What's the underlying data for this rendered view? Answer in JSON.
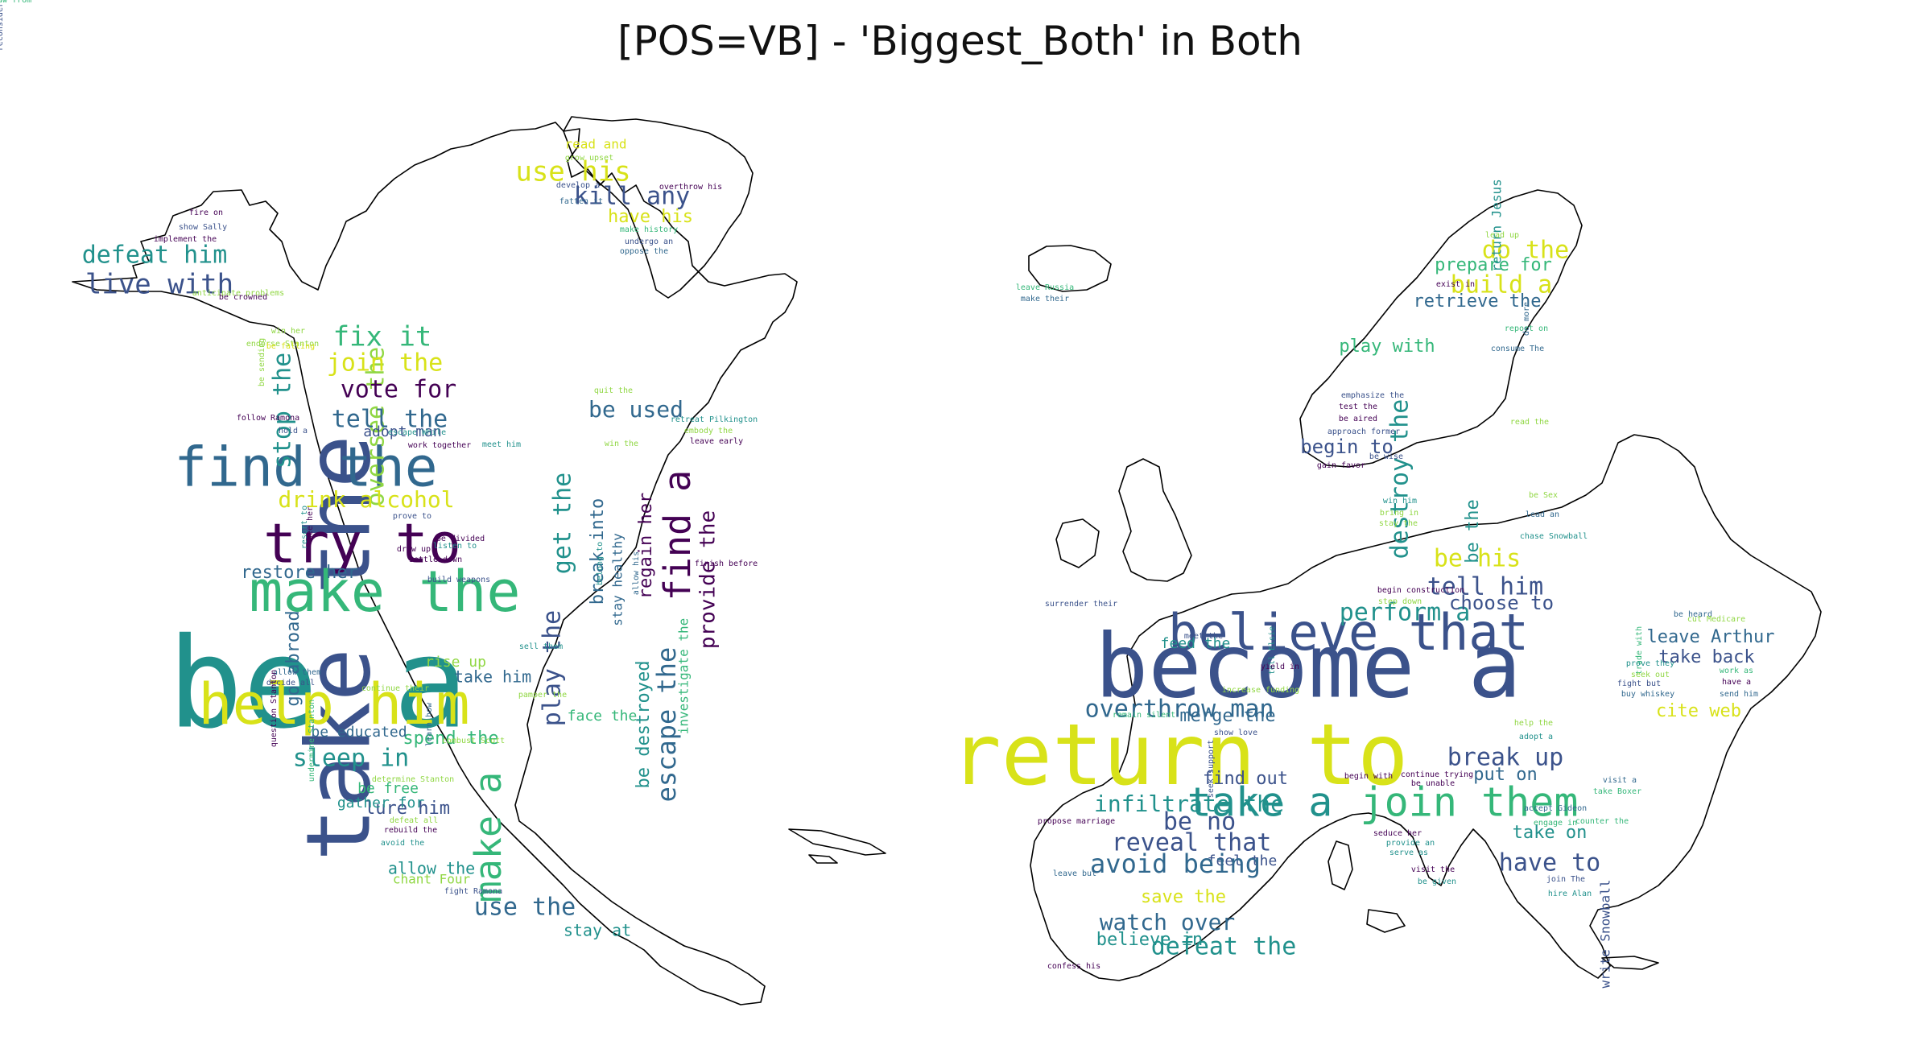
{
  "title": "[POS=VB] - 'Biggest_Both' in Both",
  "palette": {
    "dark": "#440154",
    "indigo": "#3b528b",
    "navy": "#31688e",
    "teal": "#21918c",
    "green": "#35b779",
    "lime": "#90d743",
    "yellow": "#d8e219",
    "outline": "#000000"
  },
  "north_america_words": [
    {
      "text": "be a",
      "size": 155,
      "color": "teal"
    },
    {
      "text": "take the",
      "size": 110,
      "color": "indigo",
      "vertical": true
    },
    {
      "text": "make the",
      "size": 70,
      "color": "green"
    },
    {
      "text": "help him",
      "size": 70,
      "color": "yellow"
    },
    {
      "text": "find the",
      "size": 68,
      "color": "navy"
    },
    {
      "text": "try to",
      "size": 68,
      "color": "dark"
    },
    {
      "text": "find a",
      "size": 45,
      "color": "dark",
      "vertical": true
    },
    {
      "text": "make a",
      "size": 45,
      "color": "green",
      "vertical": true
    },
    {
      "text": "escape the",
      "size": 32,
      "color": "navy",
      "vertical": true
    },
    {
      "text": "oversee the",
      "size": 30,
      "color": "lime",
      "vertical": true
    },
    {
      "text": "play the",
      "size": 30,
      "color": "indigo",
      "vertical": true
    },
    {
      "text": "get the",
      "size": 30,
      "color": "teal",
      "vertical": true
    },
    {
      "text": "stop the",
      "size": 30,
      "color": "teal",
      "vertical": true
    },
    {
      "text": "live with",
      "size": 34,
      "color": "indigo"
    },
    {
      "text": "defeat him",
      "size": 30,
      "color": "teal"
    },
    {
      "text": "fix it",
      "size": 34,
      "color": "green"
    },
    {
      "text": "join the",
      "size": 30,
      "color": "yellow"
    },
    {
      "text": "vote for",
      "size": 30,
      "color": "dark"
    },
    {
      "text": "tell the",
      "size": 30,
      "color": "navy"
    },
    {
      "text": "drink alcohol",
      "size": 28,
      "color": "yellow"
    },
    {
      "text": "use his",
      "size": 34,
      "color": "yellow"
    },
    {
      "text": "kill any",
      "size": 30,
      "color": "indigo"
    },
    {
      "text": "have his",
      "size": 22,
      "color": "yellow"
    },
    {
      "text": "be used",
      "size": 28,
      "color": "navy"
    },
    {
      "text": "sleep in",
      "size": 30,
      "color": "teal"
    },
    {
      "text": "spend the",
      "size": 22,
      "color": "green"
    },
    {
      "text": "use the",
      "size": 30,
      "color": "navy"
    },
    {
      "text": "provide the",
      "size": 26,
      "color": "dark",
      "vertical": true
    },
    {
      "text": "regain her",
      "size": 22,
      "color": "dark",
      "vertical": true
    },
    {
      "text": "break into",
      "size": 22,
      "color": "navy",
      "vertical": true
    },
    {
      "text": "be destroyed",
      "size": 22,
      "color": "teal",
      "vertical": true
    },
    {
      "text": "go abroad",
      "size": 22,
      "color": "navy",
      "vertical": true
    },
    {
      "text": "restore her",
      "size": 22,
      "color": "navy"
    },
    {
      "text": "lure him",
      "size": 22,
      "color": "indigo"
    },
    {
      "text": "allow the",
      "size": 20,
      "color": "teal"
    },
    {
      "text": "adopt man",
      "size": 18,
      "color": "indigo"
    },
    {
      "text": "rise up",
      "size": 18,
      "color": "lime"
    },
    {
      "text": "take him",
      "size": 20,
      "color": "navy"
    },
    {
      "text": "stay at",
      "size": 20,
      "color": "teal"
    },
    {
      "text": "face the",
      "size": 18,
      "color": "green"
    },
    {
      "text": "be educated",
      "size": 18,
      "color": "navy"
    },
    {
      "text": "be free",
      "size": 18,
      "color": "green"
    },
    {
      "text": "gather for",
      "size": 18,
      "color": "teal"
    },
    {
      "text": "chant Four",
      "size": 16,
      "color": "lime"
    },
    {
      "text": "read and",
      "size": 16,
      "color": "yellow"
    },
    {
      "text": "investigate the",
      "size": 16,
      "color": "green",
      "vertical": true
    },
    {
      "text": "stay healthy",
      "size": 16,
      "color": "navy",
      "vertical": true
    },
    {
      "text": "grow upset",
      "size": 10,
      "color": "lime"
    },
    {
      "text": "develop a",
      "size": 10,
      "color": "indigo"
    },
    {
      "text": "overthrow his",
      "size": 10,
      "color": "dark"
    },
    {
      "text": "fatten it",
      "size": 10,
      "color": "navy"
    },
    {
      "text": "make history",
      "size": 10,
      "color": "green"
    },
    {
      "text": "undergo an",
      "size": 10,
      "color": "indigo"
    },
    {
      "text": "oppose the",
      "size": 10,
      "color": "navy"
    },
    {
      "text": "fire on",
      "size": 10,
      "color": "dark"
    },
    {
      "text": "show Sally",
      "size": 10,
      "color": "indigo"
    },
    {
      "text": "implement the",
      "size": 10,
      "color": "dark"
    },
    {
      "text": "anticipate problems",
      "size": 10,
      "color": "lime"
    },
    {
      "text": "be crowned",
      "size": 10,
      "color": "dark"
    },
    {
      "text": "win her",
      "size": 10,
      "color": "lime"
    },
    {
      "text": "endorse Stanton",
      "size": 10,
      "color": "lime"
    },
    {
      "text": "be falling",
      "size": 10,
      "color": "yellow"
    },
    {
      "text": "quit the",
      "size": 10,
      "color": "lime"
    },
    {
      "text": "retreat Pilkington",
      "size": 10,
      "color": "teal"
    },
    {
      "text": "embody the",
      "size": 10,
      "color": "lime"
    },
    {
      "text": "leave early",
      "size": 10,
      "color": "dark"
    },
    {
      "text": "win the",
      "size": 10,
      "color": "lime"
    },
    {
      "text": "escape While",
      "size": 10,
      "color": "teal"
    },
    {
      "text": "follow Ramona",
      "size": 10,
      "color": "dark"
    },
    {
      "text": "hold a",
      "size": 10,
      "color": "indigo"
    },
    {
      "text": "work together",
      "size": 10,
      "color": "dark"
    },
    {
      "text": "meet him",
      "size": 10,
      "color": "teal"
    },
    {
      "text": "prove to",
      "size": 10,
      "color": "indigo"
    },
    {
      "text": "be divided",
      "size": 10,
      "color": "dark"
    },
    {
      "text": "listen to",
      "size": 10,
      "color": "teal"
    },
    {
      "text": "draw up",
      "size": 10,
      "color": "dark"
    },
    {
      "text": "settle down",
      "size": 10,
      "color": "dark"
    },
    {
      "text": "build weapons",
      "size": 10,
      "color": "indigo"
    },
    {
      "text": "allow them",
      "size": 10,
      "color": "navy"
    },
    {
      "text": "decide all",
      "size": 10,
      "color": "indigo"
    },
    {
      "text": "sell them",
      "size": 10,
      "color": "teal"
    },
    {
      "text": "pamper the",
      "size": 10,
      "color": "lime"
    },
    {
      "text": "continue their",
      "size": 10,
      "color": "lime"
    },
    {
      "text": "combust Scott",
      "size": 10,
      "color": "lime"
    },
    {
      "text": "determine Stanton",
      "size": 10,
      "color": "lime"
    },
    {
      "text": "defeat all",
      "size": 10,
      "color": "lime"
    },
    {
      "text": "rebuild the",
      "size": 10,
      "color": "dark"
    },
    {
      "text": "avoid the",
      "size": 10,
      "color": "teal"
    },
    {
      "text": "fight Ramona",
      "size": 10,
      "color": "indigo"
    },
    {
      "text": "finish before",
      "size": 10,
      "color": "dark"
    },
    {
      "text": "learn how",
      "size": 10,
      "color": "navy",
      "vertical": true
    },
    {
      "text": "question Stanton",
      "size": 10,
      "color": "dark",
      "vertical": true
    },
    {
      "text": "undermine Stanton",
      "size": 10,
      "color": "green",
      "vertical": true
    },
    {
      "text": "resort to",
      "size": 10,
      "color": "teal",
      "vertical": true
    },
    {
      "text": "see her",
      "size": 10,
      "color": "dark",
      "vertical": true
    },
    {
      "text": "be sending",
      "size": 10,
      "color": "lime",
      "vertical": true
    },
    {
      "text": "allow his",
      "size": 10,
      "color": "navy",
      "vertical": true
    },
    {
      "text": "belong to",
      "size": 10,
      "color": "teal",
      "vertical": true
    },
    {
      "text": "reconsider persuading",
      "size": 10,
      "color": "indigo",
      "vertical": true
    }
  ],
  "europe_words": [
    {
      "text": "become a",
      "size": 110,
      "color": "indigo"
    },
    {
      "text": "return to",
      "size": 105,
      "color": "yellow"
    },
    {
      "text": "believe that",
      "size": 62,
      "color": "indigo"
    },
    {
      "text": "take a",
      "size": 50,
      "color": "teal"
    },
    {
      "text": "join them",
      "size": 50,
      "color": "green"
    },
    {
      "text": "destroy the",
      "size": 30,
      "color": "teal",
      "vertical": true
    },
    {
      "text": "do the",
      "size": 30,
      "color": "yellow"
    },
    {
      "text": "build a",
      "size": 30,
      "color": "yellow"
    },
    {
      "text": "prepare for",
      "size": 22,
      "color": "green"
    },
    {
      "text": "retrieve the",
      "size": 22,
      "color": "navy"
    },
    {
      "text": "be the",
      "size": 22,
      "color": "teal",
      "vertical": true
    },
    {
      "text": "be his",
      "size": 30,
      "color": "yellow"
    },
    {
      "text": "tell him",
      "size": 30,
      "color": "indigo"
    },
    {
      "text": "perform a",
      "size": 30,
      "color": "teal"
    },
    {
      "text": "choose to",
      "size": 24,
      "color": "indigo"
    },
    {
      "text": "leave Arthur",
      "size": 22,
      "color": "navy"
    },
    {
      "text": "take back",
      "size": 22,
      "color": "indigo"
    },
    {
      "text": "cite web",
      "size": 22,
      "color": "yellow"
    },
    {
      "text": "merge the",
      "size": 22,
      "color": "navy"
    },
    {
      "text": "overthrow man",
      "size": 30,
      "color": "navy"
    },
    {
      "text": "break up",
      "size": 30,
      "color": "indigo"
    },
    {
      "text": "put on",
      "size": 22,
      "color": "navy"
    },
    {
      "text": "take on",
      "size": 22,
      "color": "teal"
    },
    {
      "text": "have to",
      "size": 30,
      "color": "indigo"
    },
    {
      "text": "be no",
      "size": 30,
      "color": "indigo"
    },
    {
      "text": "reveal that",
      "size": 30,
      "color": "indigo"
    },
    {
      "text": "infiltrate the",
      "size": 28,
      "color": "teal"
    },
    {
      "text": "find out",
      "size": 22,
      "color": "indigo"
    },
    {
      "text": "feel the",
      "size": 18,
      "color": "indigo"
    },
    {
      "text": "avoid being",
      "size": 32,
      "color": "navy"
    },
    {
      "text": "save the",
      "size": 22,
      "color": "yellow"
    },
    {
      "text": "watch over",
      "size": 28,
      "color": "navy"
    },
    {
      "text": "believe in",
      "size": 22,
      "color": "teal"
    },
    {
      "text": "defeat the",
      "size": 30,
      "color": "teal"
    },
    {
      "text": "begin to",
      "size": 24,
      "color": "indigo"
    },
    {
      "text": "play with",
      "size": 22,
      "color": "green"
    },
    {
      "text": "feed the",
      "size": 18,
      "color": "teal"
    },
    {
      "text": "write Snowball",
      "size": 16,
      "color": "indigo",
      "vertical": true
    },
    {
      "text": "return Jesus",
      "size": 16,
      "color": "teal",
      "vertical": true
    },
    {
      "text": "lead up",
      "size": 10,
      "color": "lime"
    },
    {
      "text": "exist in",
      "size": 10,
      "color": "dark"
    },
    {
      "text": "do more",
      "size": 10,
      "color": "navy",
      "vertical": true
    },
    {
      "text": "report on",
      "size": 10,
      "color": "green"
    },
    {
      "text": "consume The",
      "size": 10,
      "color": "navy"
    },
    {
      "text": "leave Russia",
      "size": 10,
      "color": "green"
    },
    {
      "text": "make their",
      "size": 10,
      "color": "navy"
    },
    {
      "text": "emphasize the",
      "size": 10,
      "color": "indigo"
    },
    {
      "text": "test the",
      "size": 10,
      "color": "dark"
    },
    {
      "text": "be aired",
      "size": 10,
      "color": "dark"
    },
    {
      "text": "approach former",
      "size": 10,
      "color": "indigo"
    },
    {
      "text": "be wise",
      "size": 10,
      "color": "indigo"
    },
    {
      "text": "gain favor",
      "size": 10,
      "color": "dark"
    },
    {
      "text": "read the",
      "size": 10,
      "color": "lime"
    },
    {
      "text": "win him",
      "size": 10,
      "color": "teal"
    },
    {
      "text": "bring in",
      "size": 10,
      "color": "lime"
    },
    {
      "text": "stay the",
      "size": 10,
      "color": "lime"
    },
    {
      "text": "be Sex",
      "size": 10,
      "color": "lime"
    },
    {
      "text": "lead an",
      "size": 10,
      "color": "navy"
    },
    {
      "text": "chase Snowball",
      "size": 10,
      "color": "teal"
    },
    {
      "text": "begin construction",
      "size": 10,
      "color": "dark"
    },
    {
      "text": "step down",
      "size": 10,
      "color": "lime"
    },
    {
      "text": "be heard",
      "size": 10,
      "color": "navy"
    },
    {
      "text": "cut Medicare",
      "size": 10,
      "color": "lime"
    },
    {
      "text": "surrender their",
      "size": 10,
      "color": "indigo"
    },
    {
      "text": "meet the",
      "size": 10,
      "color": "indigo"
    },
    {
      "text": "tell Elsie",
      "size": 10,
      "color": "teal",
      "vertical": true
    },
    {
      "text": "yield in",
      "size": 10,
      "color": "dark"
    },
    {
      "text": "increase funding",
      "size": 10,
      "color": "lime"
    },
    {
      "text": "remain silent",
      "size": 10,
      "color": "green"
    },
    {
      "text": "show love",
      "size": 10,
      "color": "indigo"
    },
    {
      "text": "seek support",
      "size": 10,
      "color": "indigo",
      "vertical": true
    },
    {
      "text": "trade with",
      "size": 10,
      "color": "green",
      "vertical": true
    },
    {
      "text": "prove they",
      "size": 10,
      "color": "teal"
    },
    {
      "text": "work as",
      "size": 10,
      "color": "green"
    },
    {
      "text": "seek out",
      "size": 10,
      "color": "lime"
    },
    {
      "text": "have a",
      "size": 10,
      "color": "dark"
    },
    {
      "text": "fight but",
      "size": 10,
      "color": "indigo"
    },
    {
      "text": "buy whiskey",
      "size": 10,
      "color": "navy"
    },
    {
      "text": "send him",
      "size": 10,
      "color": "navy"
    },
    {
      "text": "help the",
      "size": 10,
      "color": "lime"
    },
    {
      "text": "adopt a",
      "size": 10,
      "color": "teal"
    },
    {
      "text": "begin with",
      "size": 10,
      "color": "dark"
    },
    {
      "text": "continue trying",
      "size": 10,
      "color": "dark"
    },
    {
      "text": "be unable",
      "size": 10,
      "color": "dark"
    },
    {
      "text": "visit a",
      "size": 10,
      "color": "navy"
    },
    {
      "text": "take Boxer",
      "size": 10,
      "color": "green"
    },
    {
      "text": "accept Gideon",
      "size": 10,
      "color": "navy"
    },
    {
      "text": "engage in",
      "size": 10,
      "color": "green"
    },
    {
      "text": "counter the",
      "size": 10,
      "color": "green"
    },
    {
      "text": "propose marriage",
      "size": 10,
      "color": "dark"
    },
    {
      "text": "seduce her",
      "size": 10,
      "color": "dark"
    },
    {
      "text": "provide an",
      "size": 10,
      "color": "teal"
    },
    {
      "text": "serve as",
      "size": 10,
      "color": "teal"
    },
    {
      "text": "leave but",
      "size": 10,
      "color": "navy"
    },
    {
      "text": "visit the",
      "size": 10,
      "color": "dark"
    },
    {
      "text": "be given",
      "size": 10,
      "color": "teal"
    },
    {
      "text": "join The",
      "size": 10,
      "color": "indigo"
    },
    {
      "text": "hire Alan",
      "size": 10,
      "color": "teal"
    },
    {
      "text": "confess his",
      "size": 10,
      "color": "dark"
    },
    {
      "text": "withdraw from",
      "size": 10,
      "color": "green"
    }
  ]
}
